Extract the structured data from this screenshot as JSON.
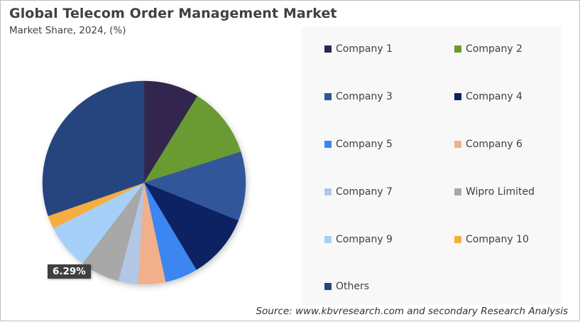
{
  "header": {
    "title": "Global Telecom Order Management  Market",
    "subtitle": "Market Share, 2024, (%)"
  },
  "source": "Source: www.kbvresearch.com and secondary Research Analysis",
  "data_label": "6.29%",
  "legend": {
    "items": [
      {
        "label": "Company 1",
        "color": "#32254f"
      },
      {
        "label": "Company 2",
        "color": "#6a9a30"
      },
      {
        "label": "Company 3",
        "color": "#30569a"
      },
      {
        "label": "Company 4",
        "color": "#0d2463"
      },
      {
        "label": "Company 5",
        "color": "#3a86f0"
      },
      {
        "label": "Company 6",
        "color": "#f0b08c"
      },
      {
        "label": "Company 7",
        "color": "#b2c6e6"
      },
      {
        "label": "Wipro Limited",
        "color": "#a8a8a8"
      },
      {
        "label": "Company 9",
        "color": "#a6d0f8"
      },
      {
        "label": "Company 10",
        "color": "#f6ae40"
      },
      {
        "label": "Others",
        "color": "#27457e"
      }
    ]
  },
  "chart_data": {
    "type": "pie",
    "title": "Global Telecom Order Management  Market",
    "subtitle": "Market Share, 2024, (%)",
    "categories": [
      "Company 1",
      "Company 2",
      "Company 3",
      "Company 4",
      "Company 5",
      "Company 6",
      "Company 7",
      "Wipro Limited",
      "Company 9",
      "Company 10",
      "Others"
    ],
    "values": [
      8.8,
      11.3,
      11.0,
      10.3,
      5.2,
      4.4,
      3.1,
      6.29,
      7.2,
      2.1,
      30.3
    ],
    "colors": [
      "#32254f",
      "#6a9a30",
      "#30569a",
      "#0d2463",
      "#3a86f0",
      "#f0b08c",
      "#b2c6e6",
      "#a8a8a8",
      "#a6d0f8",
      "#f6ae40",
      "#27457e"
    ],
    "start_angle_deg": 0,
    "direction": "clockwise",
    "annotations": [
      {
        "category": "Wipro Limited",
        "text": "6.29%"
      }
    ],
    "legend_position": "right",
    "source": "Source: www.kbvresearch.com and secondary Research Analysis"
  }
}
